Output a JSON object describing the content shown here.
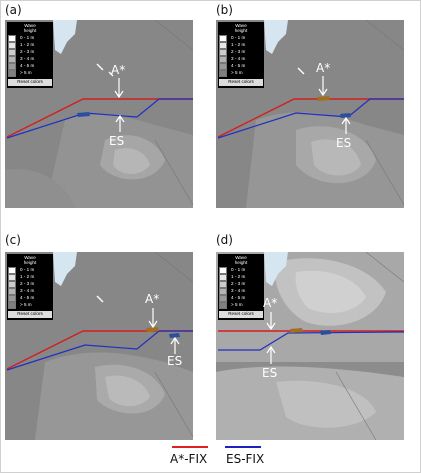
{
  "panels": [
    {
      "label": "(a)",
      "top_annotation": "A*",
      "bottom_annotation": "ES"
    },
    {
      "label": "(b)",
      "top_annotation": "A*",
      "bottom_annotation": "ES"
    },
    {
      "label": "(c)",
      "top_annotation": "A*",
      "bottom_annotation": "ES"
    },
    {
      "label": "(d)",
      "top_annotation": "A*",
      "bottom_annotation": "ES"
    }
  ],
  "legend": {
    "title_line1": "Wave",
    "title_line2": "height",
    "items": [
      {
        "label": "0 - 1 m",
        "color": "#ffffff"
      },
      {
        "label": "1 - 2 m",
        "color": "#e6e6e6"
      },
      {
        "label": "2 - 3 m",
        "color": "#cccccc"
      },
      {
        "label": "3 - 4 m",
        "color": "#b3b3b3"
      },
      {
        "label": "4 - 5 m",
        "color": "#999999"
      },
      {
        "label": "> 5 m",
        "color": "#808080"
      }
    ],
    "reset_label": "Reset colors"
  },
  "key": [
    {
      "label": "A*-FIX",
      "color": "#e02020"
    },
    {
      "label": "ES-FIX",
      "color": "#2020c0"
    }
  ],
  "colors": {
    "water": "#8a8a8a",
    "land": "#cfe3ee"
  }
}
